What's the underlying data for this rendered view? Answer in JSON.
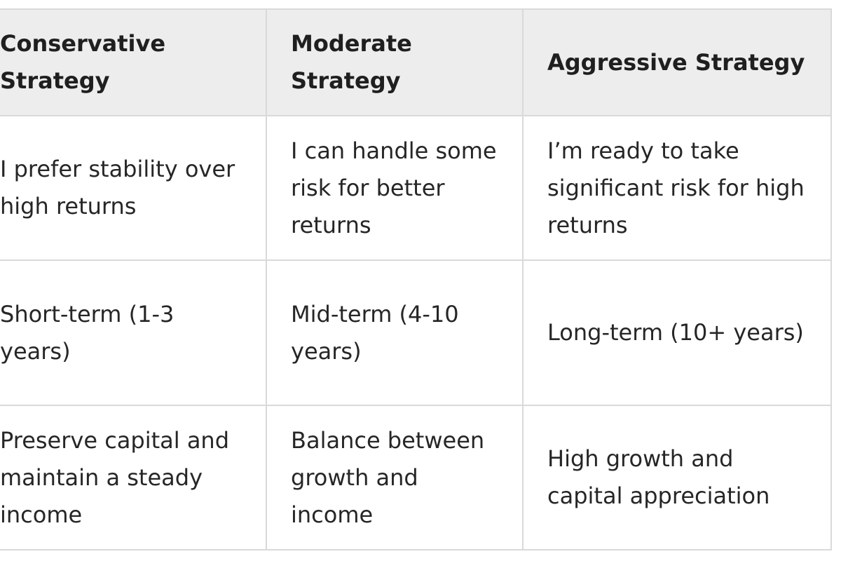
{
  "table": {
    "headers": [
      "Conservative Strategy",
      "Moderate Strategy",
      "Aggressive Strategy"
    ],
    "rows": [
      [
        "I prefer stability over high returns",
        "I can handle some risk for better returns",
        "I’m ready to take significant risk for high returns"
      ],
      [
        "Short-term (1-3 years)",
        "Mid-term (4-10 years)",
        "Long-term (10+ years)"
      ],
      [
        "Preserve capital and maintain a steady income",
        "Balance between growth and income",
        "High growth and capital appreciation"
      ]
    ]
  }
}
